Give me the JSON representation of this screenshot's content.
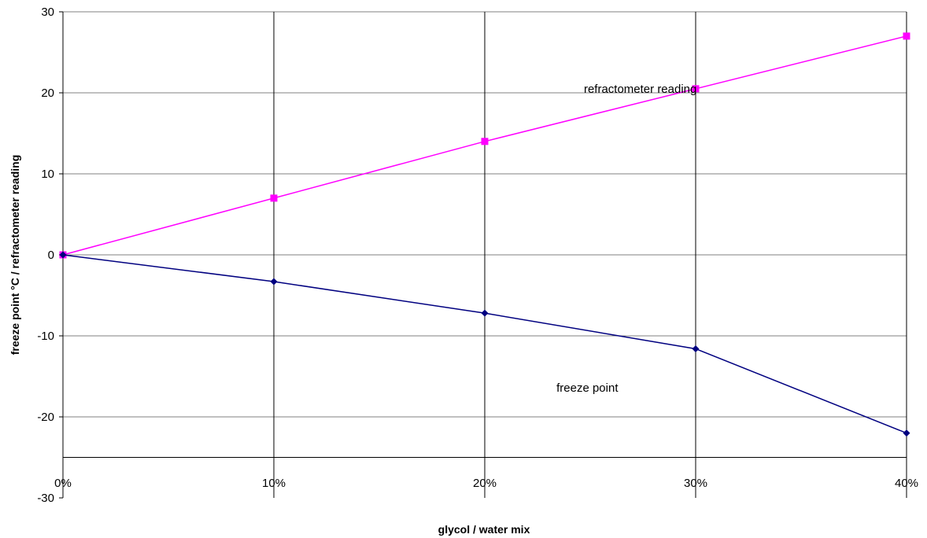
{
  "chart_data": {
    "type": "line",
    "title": "",
    "xlabel": "glycol / water mix",
    "ylabel": "freeze point °C / refractometer reading",
    "x": [
      0,
      10,
      20,
      30,
      40
    ],
    "x_tick_labels": [
      "0%",
      "10%",
      "20%",
      "30%",
      "40%"
    ],
    "xlim": [
      0,
      40
    ],
    "x_axis_crosses_y": -25,
    "ylim": [
      -30,
      30
    ],
    "y_ticks": [
      -30,
      -20,
      -10,
      0,
      10,
      20,
      30
    ],
    "y_tick_labels": [
      "-30",
      "-20",
      "-10",
      "0",
      "10",
      "20",
      "30"
    ],
    "grid": true,
    "legend": "none",
    "series": [
      {
        "name": "refractometer reading",
        "values": [
          0,
          7,
          14,
          20.5,
          27
        ],
        "color": "#ff00ff",
        "marker": "square"
      },
      {
        "name": "freeze point",
        "values": [
          0,
          -3.3,
          -7.2,
          -11.6,
          -22
        ],
        "color": "#000080",
        "marker": "diamond"
      }
    ],
    "annotations": [
      {
        "text": "refractometer reading",
        "x": 24.7,
        "y": 20.5
      },
      {
        "text": "freeze point",
        "x": 23.4,
        "y": -16.4
      }
    ]
  }
}
